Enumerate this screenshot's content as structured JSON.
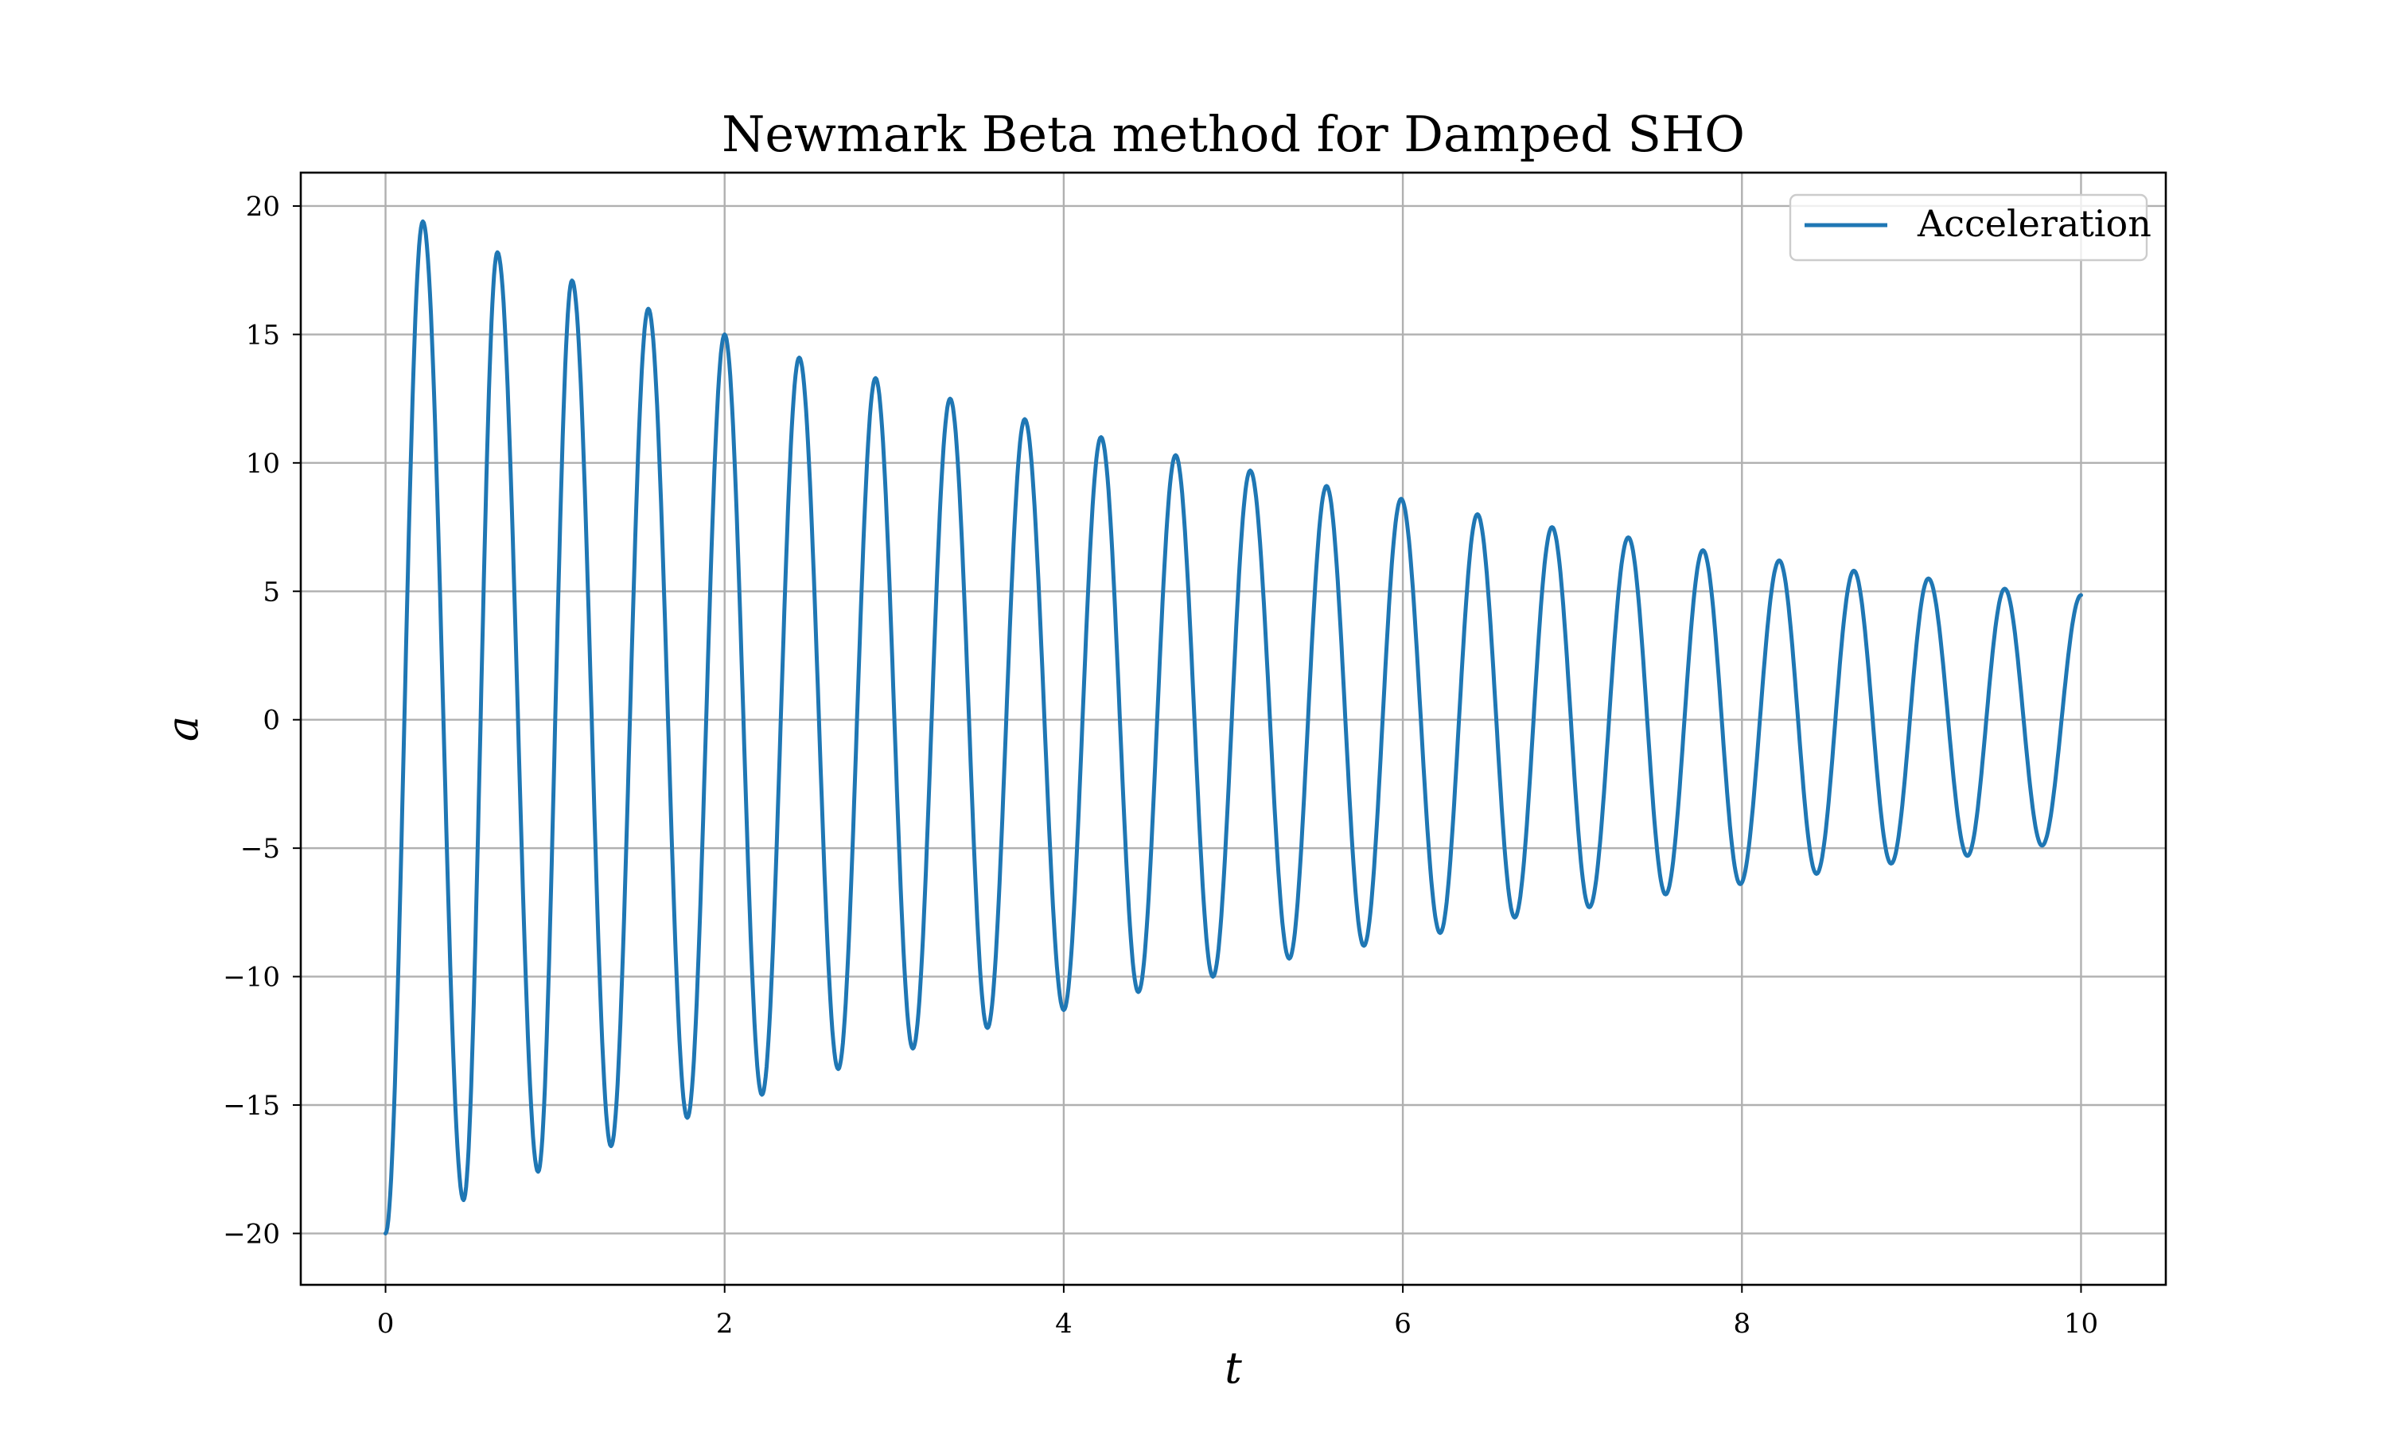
{
  "chart_data": {
    "type": "line",
    "title": "Newmark Beta method for Damped SHO",
    "xlabel": "t",
    "ylabel": "a",
    "xlim": [
      -0.5,
      10.5
    ],
    "ylim": [
      -22,
      21.3
    ],
    "xticks": [
      0,
      2,
      4,
      6,
      8,
      10
    ],
    "yticks": [
      -20,
      -15,
      -10,
      -5,
      0,
      5,
      10,
      15,
      20
    ],
    "xtick_labels": [
      "0",
      "2",
      "4",
      "6",
      "8",
      "10"
    ],
    "ytick_labels": [
      "−20",
      "−15",
      "−10",
      "−5",
      "0",
      "5",
      "10",
      "15",
      "20"
    ],
    "grid": true,
    "legend_position": "top-right",
    "series": [
      {
        "name": "Acceleration",
        "color": "#1f77b4",
        "x": [
          0,
          0.22,
          0.46,
          0.66,
          0.9,
          1.1,
          1.33,
          1.55,
          1.78,
          2.0,
          2.22,
          2.44,
          2.67,
          2.89,
          3.11,
          3.33,
          3.55,
          3.77,
          4.0,
          4.22,
          4.44,
          4.66,
          4.88,
          5.1,
          5.33,
          5.55,
          5.77,
          5.99,
          6.22,
          6.44,
          6.66,
          6.88,
          7.1,
          7.33,
          7.55,
          7.77,
          7.99,
          8.22,
          8.44,
          8.66,
          8.88,
          9.1,
          9.33,
          9.55,
          9.77,
          10.0
        ],
        "y": [
          -20,
          19.4,
          -18.7,
          18.2,
          -17.6,
          17.1,
          -16.6,
          16.0,
          -15.5,
          15.0,
          -14.6,
          14.1,
          -13.6,
          13.3,
          -12.8,
          12.5,
          -12.0,
          11.7,
          -11.3,
          11.0,
          -10.6,
          10.3,
          -10.0,
          9.7,
          -9.3,
          9.1,
          -8.8,
          8.6,
          -8.3,
          8.0,
          -7.7,
          7.5,
          -7.3,
          7.1,
          -6.8,
          6.6,
          -6.4,
          6.2,
          -6.0,
          5.8,
          -5.6,
          5.5,
          -5.3,
          5.1,
          -4.9,
          4.85
        ]
      }
    ]
  }
}
